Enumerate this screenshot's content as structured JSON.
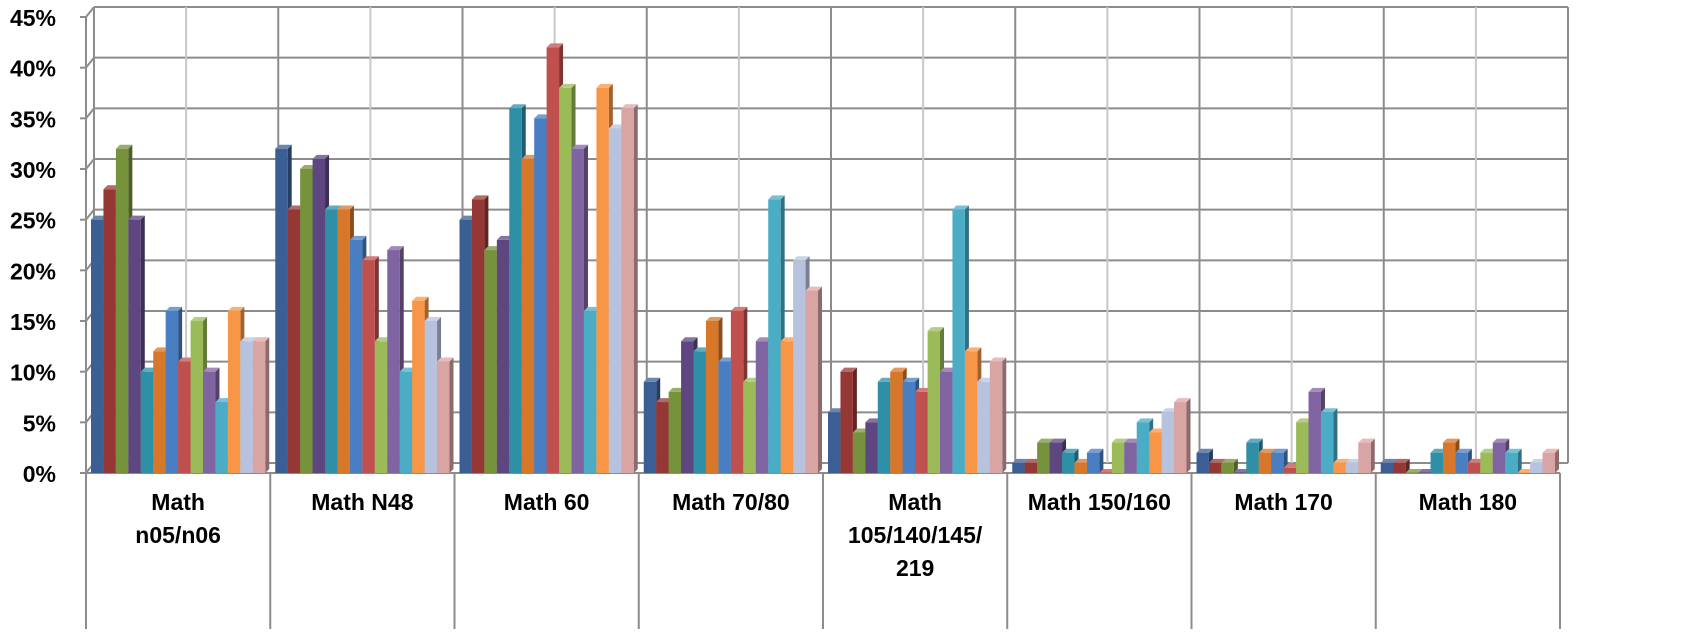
{
  "chart_data": {
    "type": "bar",
    "categories": [
      "Math n05/n06",
      "Math N48",
      "Math 60",
      "Math 70/80",
      "Math 105/140/145/219",
      "Math 150/160",
      "Math 170",
      "Math 180"
    ],
    "category_label_lines": [
      [
        "Math",
        "n05/n06"
      ],
      [
        "Math N48"
      ],
      [
        "Math 60"
      ],
      [
        "Math 70/80"
      ],
      [
        "Math",
        "105/140/145/",
        "219"
      ],
      [
        "Math 150/160"
      ],
      [
        "Math 170"
      ],
      [
        "Math 180"
      ]
    ],
    "series_colors": [
      "#3B5F94",
      "#953835",
      "#77923C",
      "#5E4680",
      "#2E8FA7",
      "#D6772A",
      "#4A7EC2",
      "#C0504D",
      "#9BBB59",
      "#8064A2",
      "#4BACC6",
      "#F79646",
      "#B7C3DE",
      "#D9A5A4"
    ],
    "series": [
      {
        "values": [
          25,
          32,
          25,
          9,
          6,
          1,
          2,
          1
        ]
      },
      {
        "values": [
          28,
          26,
          27,
          7,
          10,
          1,
          1,
          1
        ]
      },
      {
        "values": [
          32,
          30,
          22,
          8,
          4,
          3,
          1,
          0
        ]
      },
      {
        "values": [
          25,
          31,
          23,
          13,
          5,
          3,
          0,
          0
        ]
      },
      {
        "values": [
          10,
          26,
          36,
          12,
          9,
          2,
          3,
          2
        ]
      },
      {
        "values": [
          12,
          26,
          31,
          15,
          10,
          1,
          2,
          3
        ]
      },
      {
        "values": [
          16,
          23,
          35,
          11,
          9,
          2,
          2,
          2
        ]
      },
      {
        "values": [
          11,
          21,
          42,
          16,
          8,
          0,
          0.5,
          1
        ]
      },
      {
        "values": [
          15,
          13,
          38,
          9,
          14,
          3,
          5,
          2
        ]
      },
      {
        "values": [
          10,
          22,
          32,
          13,
          10,
          3,
          8,
          3
        ]
      },
      {
        "values": [
          7,
          10,
          16,
          27,
          26,
          5,
          6,
          2
        ]
      },
      {
        "values": [
          16,
          17,
          38,
          13,
          12,
          4,
          1,
          0
        ]
      },
      {
        "values": [
          13,
          15,
          34,
          21,
          9,
          6,
          1,
          1
        ]
      },
      {
        "values": [
          13,
          11,
          36,
          18,
          11,
          7,
          3,
          2
        ]
      }
    ],
    "y_ticks": [
      "0%",
      "5%",
      "10%",
      "15%",
      "20%",
      "25%",
      "30%",
      "35%",
      "40%",
      "45%"
    ],
    "ylim": [
      0,
      45
    ],
    "y_unit": "%",
    "grid": true,
    "legend": "none",
    "title": "",
    "xlabel": "",
    "ylabel": ""
  }
}
